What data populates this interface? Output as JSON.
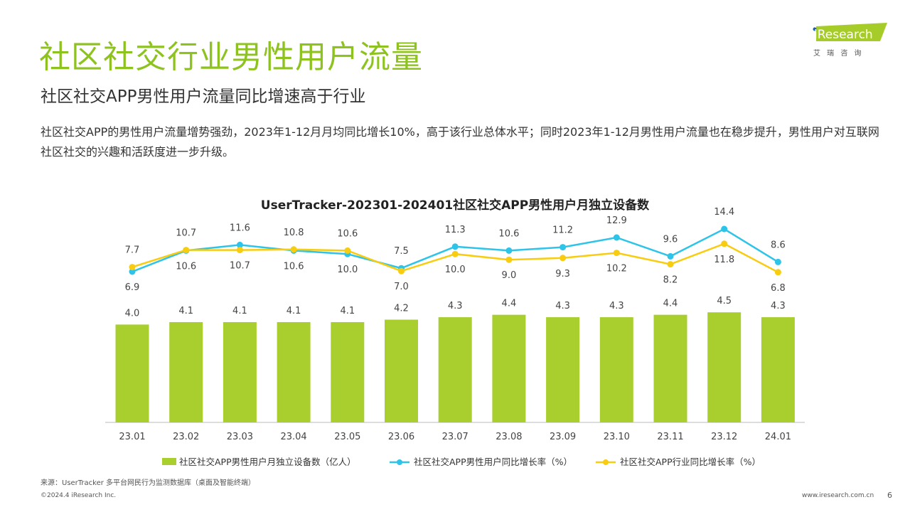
{
  "header": {
    "title": "社区社交行业男性用户流量",
    "subtitle": "社区社交APP男性用户流量同比增速高于行业",
    "description": "社区社交APP的男性用户流量增势强劲，2023年1-12月月均同比增长10%，高于该行业总体水平；同时2023年1-12月男性用户流量也在稳步提升，男性用户对互联网社区社交的兴趣和活跃度进一步升级。"
  },
  "logo": {
    "text": "iResearch",
    "cn": "艾 瑞 咨 询",
    "color": "#a6cc2a"
  },
  "footer": {
    "source": "来源：UserTracker 多平台网民行为监测数据库（桌面及智能终端）",
    "copyright": "©2024.4 iResearch Inc.",
    "site": "www.iresearch.com.cn",
    "page": "6"
  },
  "chart_data": {
    "type": "bar+line",
    "title": "UserTracker-202301-202401社区社交APP男性用户月独立设备数",
    "categories": [
      "23.01",
      "23.02",
      "23.03",
      "23.04",
      "23.05",
      "23.06",
      "23.07",
      "23.08",
      "23.09",
      "23.10",
      "23.11",
      "23.12",
      "24.01"
    ],
    "legend_position": "bottom",
    "grid": false,
    "series": [
      {
        "name": "社区社交APP男性用户月独立设备数（亿人）",
        "type": "bar",
        "color": "#a8cf2e",
        "values": [
          4.0,
          4.1,
          4.1,
          4.1,
          4.1,
          4.2,
          4.3,
          4.4,
          4.3,
          4.3,
          4.4,
          4.5,
          4.3
        ]
      },
      {
        "name": "社区社交APP男性用户同比增长率（%）",
        "type": "line",
        "color": "#2ec3e8",
        "values": [
          6.9,
          10.6,
          11.6,
          10.6,
          10.0,
          7.5,
          11.3,
          10.6,
          11.2,
          12.9,
          9.6,
          14.4,
          8.6
        ]
      },
      {
        "name": "社区社交APP行业同比增长率（%）",
        "type": "line",
        "color": "#f8cc10",
        "values": [
          7.7,
          10.7,
          10.7,
          10.8,
          10.6,
          7.0,
          10.0,
          9.0,
          9.3,
          10.2,
          8.2,
          11.8,
          6.8
        ]
      }
    ]
  }
}
